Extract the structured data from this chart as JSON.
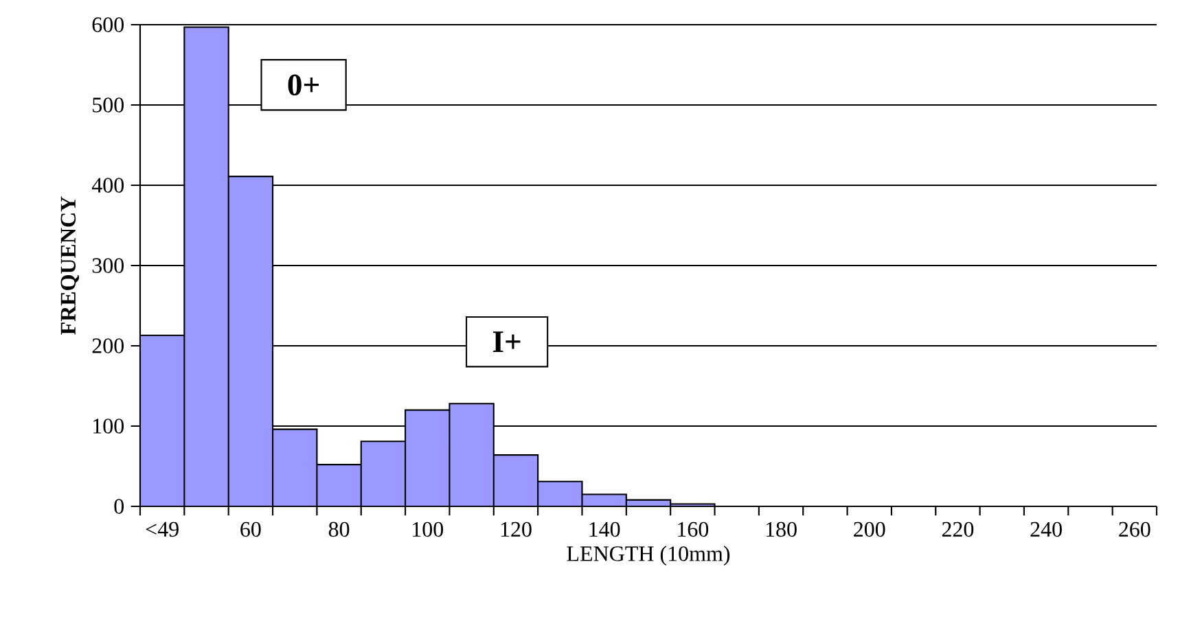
{
  "chart_data": {
    "type": "bar",
    "xlabel": "LENGTH (10mm)",
    "ylabel": "FREQUENCY",
    "categories": [
      "<49",
      null,
      "60",
      null,
      "80",
      null,
      "100",
      null,
      "120",
      null,
      "140",
      null,
      "160",
      null,
      "180",
      null,
      "200",
      null,
      "220",
      null,
      "240",
      null,
      "260"
    ],
    "values": [
      213,
      597,
      411,
      96,
      52,
      81,
      120,
      128,
      64,
      31,
      15,
      8,
      3,
      0,
      0,
      0,
      0,
      0,
      0,
      0,
      0,
      0,
      0
    ],
    "color": "#9999ff",
    "ylim": [
      0,
      600
    ],
    "yticks": [
      0,
      100,
      200,
      300,
      400,
      500,
      600
    ],
    "grid": "y",
    "annotations": [
      "0+",
      "I+"
    ]
  }
}
